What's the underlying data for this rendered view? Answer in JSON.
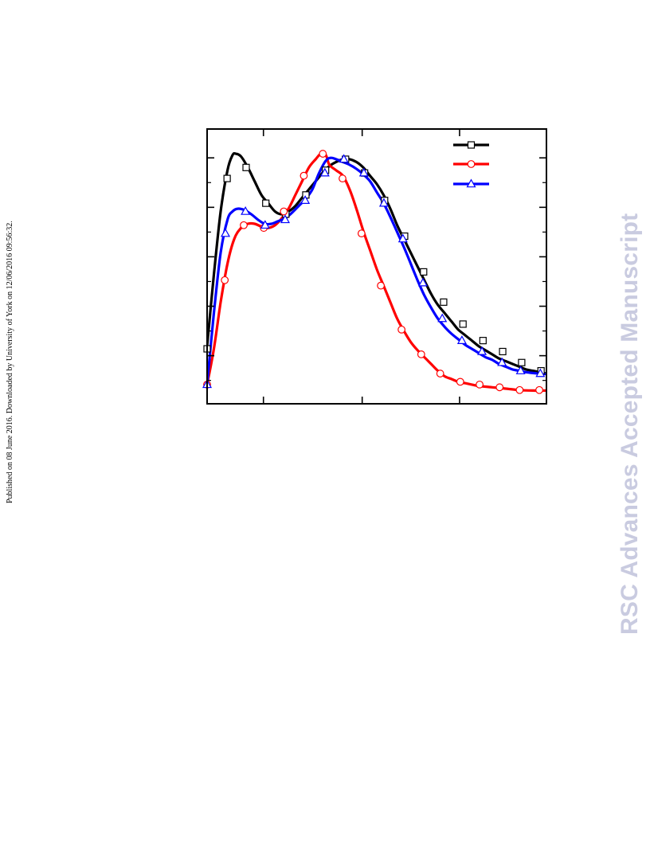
{
  "side_note": "Published on 08 June 2016. Downloaded by University of York on 12/06/2016 09:56:32.",
  "watermark": "RSC Advances Accepted Manuscript",
  "colors": {
    "series_black": "#000000",
    "series_red": "#ff0000",
    "series_blue": "#0000ff",
    "watermark": "#c9cbe0"
  },
  "chart_data": {
    "type": "line",
    "title": "",
    "xlabel": "",
    "ylabel": "",
    "xlim": [
      0,
      100
    ],
    "ylim": [
      0,
      1
    ],
    "grid": false,
    "tick_labels_printed": false,
    "x_major_ticks": [
      0,
      16.6,
      45.7,
      74.4,
      100
    ],
    "y_major_ticks": [
      0.175,
      0.355,
      0.535,
      0.715,
      0.895
    ],
    "y_minor_ticks": [
      0.085,
      0.265,
      0.445,
      0.625,
      0.805
    ],
    "legend_position": "top-right",
    "series": [
      {
        "marker": "square",
        "color": "#000000",
        "x": [
          0.0,
          5.9,
          11.5,
          17.3,
          23.2,
          29.1,
          34.9,
          40.8,
          46.4,
          52.3,
          58.2,
          63.8,
          69.7,
          75.4,
          81.3,
          87.1,
          92.7,
          98.4
        ],
        "y": [
          0.2,
          0.82,
          0.86,
          0.73,
          0.69,
          0.76,
          0.85,
          0.89,
          0.84,
          0.74,
          0.61,
          0.48,
          0.37,
          0.29,
          0.23,
          0.19,
          0.15,
          0.12
        ],
        "curve_x": [
          0.0,
          2.0,
          4.0,
          6.0,
          7.5,
          8.5,
          10.0,
          12.0,
          14.0,
          16.0,
          18.0,
          20.0,
          22.0,
          24.0,
          26.0,
          28.0,
          30.0,
          32.0,
          34.0,
          36.0,
          38.0,
          40.0,
          42.0,
          44.0,
          46.0,
          48.0,
          50.0,
          52.0,
          54.0,
          56.0,
          58.0,
          60.0,
          62.0,
          64.0,
          66.0,
          68.0,
          70.0,
          72.0,
          74.0,
          76.0,
          78.0,
          80.0,
          82.0,
          84.0,
          86.0,
          88.0,
          90.0,
          92.0,
          94.0,
          96.0,
          98.0,
          100.0
        ],
        "curve_y": [
          0.21,
          0.47,
          0.7,
          0.85,
          0.905,
          0.91,
          0.9,
          0.86,
          0.81,
          0.76,
          0.73,
          0.7,
          0.69,
          0.7,
          0.72,
          0.75,
          0.78,
          0.81,
          0.84,
          0.865,
          0.88,
          0.89,
          0.89,
          0.88,
          0.86,
          0.83,
          0.8,
          0.76,
          0.71,
          0.65,
          0.6,
          0.55,
          0.5,
          0.45,
          0.4,
          0.36,
          0.33,
          0.3,
          0.27,
          0.25,
          0.23,
          0.21,
          0.195,
          0.18,
          0.165,
          0.155,
          0.145,
          0.135,
          0.125,
          0.12,
          0.115,
          0.11
        ]
      },
      {
        "marker": "circle",
        "color": "#ff0000",
        "x": [
          0.0,
          5.2,
          10.8,
          16.7,
          22.6,
          28.5,
          34.1,
          39.9,
          45.5,
          51.2,
          57.3,
          63.1,
          68.7,
          74.6,
          80.3,
          86.2,
          92.1,
          97.9
        ],
        "y": [
          0.07,
          0.45,
          0.65,
          0.64,
          0.7,
          0.83,
          0.91,
          0.82,
          0.62,
          0.43,
          0.27,
          0.18,
          0.11,
          0.08,
          0.07,
          0.06,
          0.05,
          0.05
        ],
        "curve_x": [
          0.0,
          2.0,
          4.0,
          6.0,
          8.0,
          10.0,
          12.0,
          14.0,
          16.0,
          18.0,
          20.0,
          22.0,
          24.0,
          26.0,
          28.0,
          30.0,
          32.0,
          33.5,
          35.0,
          36.0,
          38.0,
          40.0,
          42.0,
          44.0,
          46.0,
          48.0,
          50.0,
          52.0,
          54.0,
          56.0,
          58.0,
          60.0,
          62.0,
          64.0,
          66.0,
          68.0,
          70.0,
          72.0,
          74.0,
          76.0,
          78.0,
          80.0,
          84.0,
          88.0,
          92.0,
          96.0,
          100.0
        ],
        "curve_y": [
          0.07,
          0.2,
          0.37,
          0.51,
          0.6,
          0.64,
          0.655,
          0.655,
          0.645,
          0.64,
          0.65,
          0.675,
          0.71,
          0.76,
          0.81,
          0.86,
          0.89,
          0.91,
          0.905,
          0.87,
          0.85,
          0.83,
          0.78,
          0.71,
          0.63,
          0.56,
          0.49,
          0.43,
          0.37,
          0.31,
          0.265,
          0.225,
          0.195,
          0.17,
          0.145,
          0.12,
          0.1,
          0.09,
          0.08,
          0.075,
          0.07,
          0.065,
          0.06,
          0.055,
          0.05,
          0.048,
          0.048
        ]
      },
      {
        "marker": "triangle",
        "color": "#0000ff",
        "x": [
          0.0,
          5.4,
          11.3,
          17.1,
          23.0,
          28.9,
          34.7,
          40.3,
          46.2,
          52.1,
          57.7,
          63.6,
          69.3,
          75.1,
          81.0,
          86.9,
          92.4,
          98.2
        ],
        "y": [
          0.07,
          0.62,
          0.7,
          0.65,
          0.67,
          0.74,
          0.84,
          0.89,
          0.84,
          0.73,
          0.6,
          0.44,
          0.31,
          0.23,
          0.19,
          0.15,
          0.12,
          0.11
        ],
        "curve_x": [
          0.0,
          2.0,
          4.0,
          6.0,
          7.5,
          9.0,
          11.0,
          13.0,
          15.0,
          17.0,
          19.0,
          21.0,
          23.0,
          25.0,
          27.0,
          29.0,
          31.0,
          33.0,
          35.0,
          36.5,
          38.0,
          40.0,
          42.0,
          44.0,
          46.0,
          48.0,
          50.0,
          52.0,
          54.0,
          56.0,
          58.0,
          60.0,
          62.0,
          64.0,
          66.0,
          68.0,
          70.0,
          72.0,
          74.0,
          76.0,
          78.0,
          80.0,
          82.0,
          84.0,
          86.0,
          88.0,
          90.0,
          92.0,
          94.0,
          96.0,
          98.0,
          100.0
        ],
        "curve_y": [
          0.07,
          0.33,
          0.55,
          0.67,
          0.7,
          0.71,
          0.705,
          0.69,
          0.67,
          0.655,
          0.655,
          0.665,
          0.675,
          0.695,
          0.72,
          0.745,
          0.78,
          0.84,
          0.885,
          0.895,
          0.89,
          0.88,
          0.87,
          0.855,
          0.835,
          0.81,
          0.77,
          0.73,
          0.68,
          0.625,
          0.57,
          0.51,
          0.45,
          0.395,
          0.35,
          0.31,
          0.28,
          0.255,
          0.235,
          0.215,
          0.2,
          0.185,
          0.17,
          0.16,
          0.145,
          0.135,
          0.125,
          0.12,
          0.115,
          0.112,
          0.11,
          0.108
        ]
      }
    ]
  }
}
